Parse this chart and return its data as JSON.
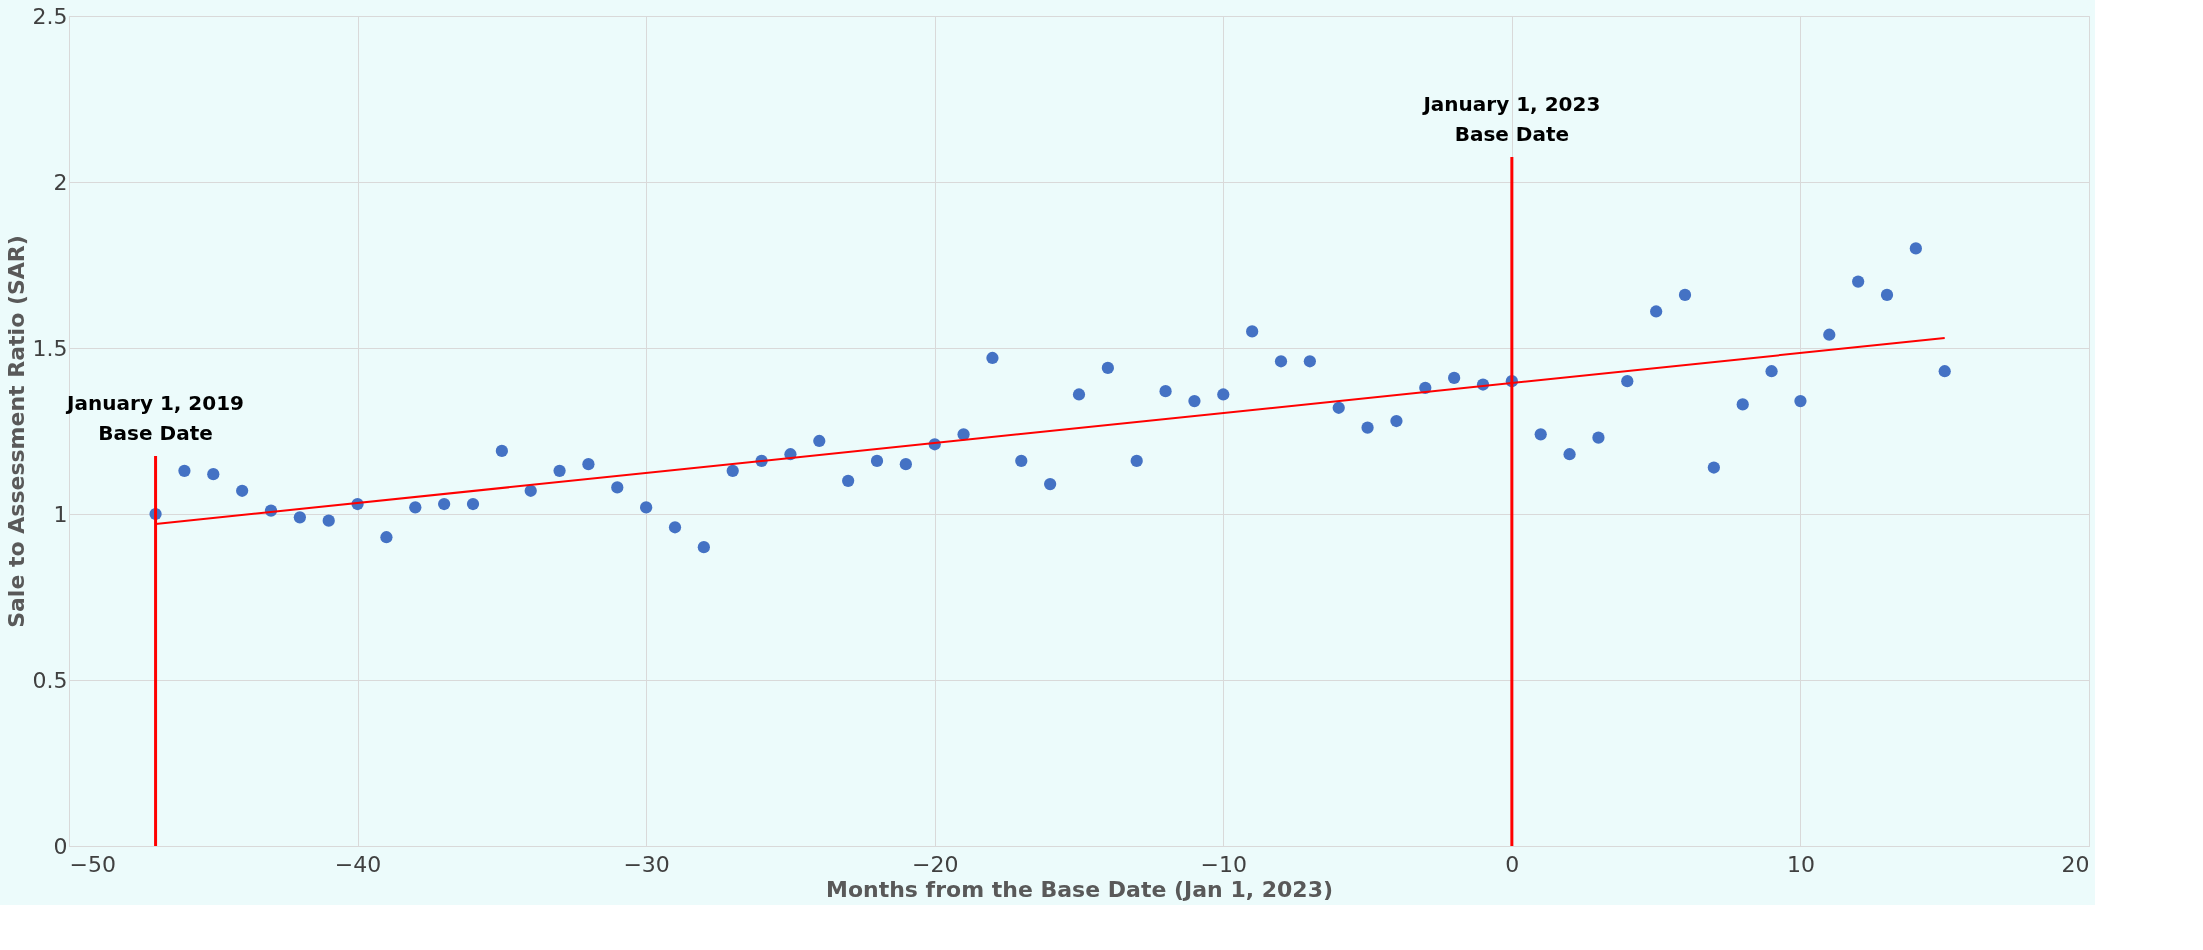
{
  "chart_data": {
    "type": "scatter",
    "xlabel": "Months from the Base Date (Jan 1, 2023)",
    "ylabel": "Sale to Assessment Ratio (SAR)",
    "xlim": [
      -50,
      20
    ],
    "xticks": [
      -50,
      -40,
      -30,
      -20,
      -10,
      0,
      10,
      20
    ],
    "ylim": [
      0,
      2.5
    ],
    "yticks": [
      0,
      0.5,
      1,
      1.5,
      2,
      2.5
    ],
    "grid": true,
    "series": [
      {
        "color": "#4472c4",
        "marker": "circle",
        "x": [
          -47,
          -46,
          -45,
          -44,
          -43,
          -42,
          -41,
          -40,
          -39,
          -38,
          -37,
          -36,
          -35,
          -34,
          -33,
          -32,
          -31,
          -30,
          -29,
          -28,
          -27,
          -26,
          -25,
          -24,
          -23,
          -22,
          -21,
          -20,
          -19,
          -18,
          -17,
          -16,
          -15,
          -14,
          -13,
          -12,
          -11,
          -10,
          -9,
          -8,
          -7,
          -6,
          -5,
          -4,
          -3,
          -2,
          -1,
          0,
          1,
          2,
          3,
          4,
          5,
          6,
          7,
          8,
          9,
          10,
          11,
          12,
          13,
          14,
          15
        ],
        "values": [
          1.0,
          1.13,
          1.12,
          1.07,
          1.01,
          0.99,
          0.98,
          1.03,
          0.93,
          1.02,
          1.03,
          1.03,
          1.19,
          1.07,
          1.13,
          1.15,
          1.08,
          1.02,
          0.96,
          0.9,
          1.13,
          1.16,
          1.18,
          1.22,
          1.1,
          1.16,
          1.15,
          1.21,
          1.24,
          1.47,
          1.16,
          1.09,
          1.36,
          1.44,
          1.16,
          1.37,
          1.34,
          1.36,
          1.55,
          1.46,
          1.46,
          1.32,
          1.26,
          1.28,
          1.38,
          1.41,
          1.39,
          1.4,
          1.24,
          1.18,
          1.23,
          1.4,
          1.61,
          1.66,
          1.14,
          1.33,
          1.43,
          1.34,
          1.54,
          1.7,
          1.66,
          1.8,
          1.43
        ]
      },
      {
        "type": "line",
        "color": "#ff0000",
        "x": [
          -47,
          15
        ],
        "values": [
          0.97,
          1.53
        ]
      }
    ],
    "ref_lines": [
      {
        "axis": "x",
        "value": -47,
        "label": "January 1, 2019\nBase Date",
        "color": "#ff0000"
      },
      {
        "axis": "x",
        "value": 0,
        "label": "January 1, 2023\nBase Date",
        "color": "#ff0000"
      }
    ]
  }
}
